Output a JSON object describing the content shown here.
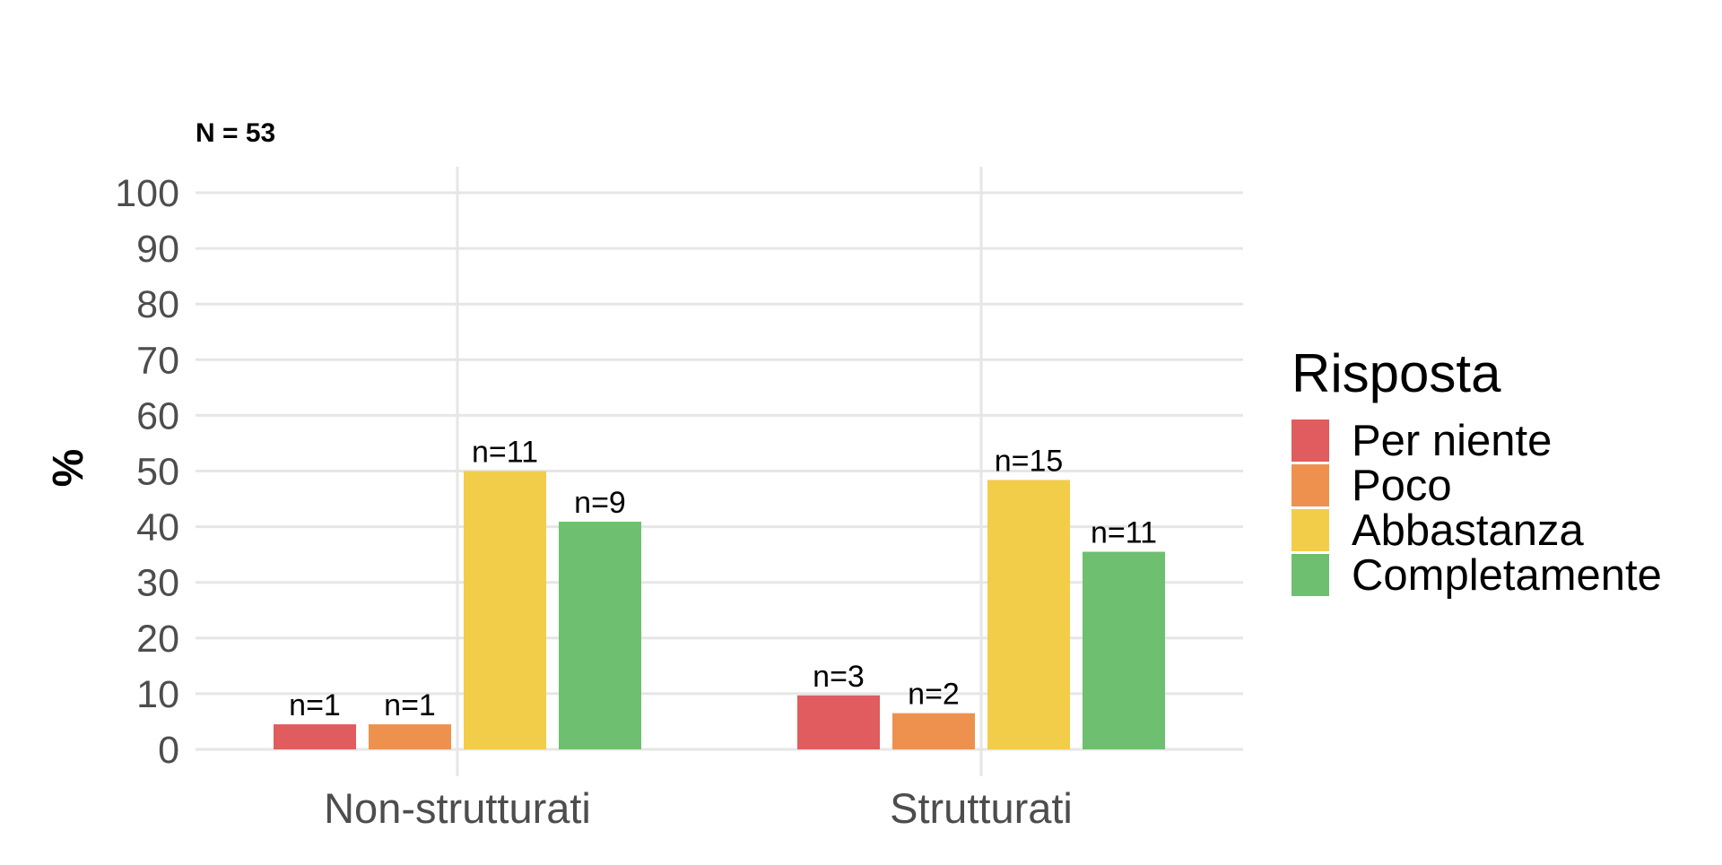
{
  "chart_data": {
    "type": "bar",
    "note": "N = 53",
    "ylabel": "%",
    "xlabel": "",
    "ylim": [
      0,
      100
    ],
    "yticks": [
      0,
      10,
      20,
      30,
      40,
      50,
      60,
      70,
      80,
      90,
      100
    ],
    "grid": true,
    "categories": [
      "Non-strutturati",
      "Strutturati"
    ],
    "legend": {
      "title": "Risposta",
      "placement": "right"
    },
    "series": [
      {
        "name": "Per niente",
        "color": "#E05C5E",
        "values": [
          4.5,
          9.7
        ],
        "labels": [
          "n=1",
          "n=3"
        ]
      },
      {
        "name": "Poco",
        "color": "#EF914E",
        "values": [
          4.5,
          6.5
        ],
        "labels": [
          "n=1",
          "n=2"
        ]
      },
      {
        "name": "Abbastanza",
        "color": "#F2CD4A",
        "values": [
          50.0,
          48.4
        ],
        "labels": [
          "n=11",
          "n=15"
        ]
      },
      {
        "name": "Completamente",
        "color": "#6FBF71",
        "values": [
          40.9,
          35.5
        ],
        "labels": [
          "n=9",
          "n=11"
        ]
      }
    ]
  }
}
